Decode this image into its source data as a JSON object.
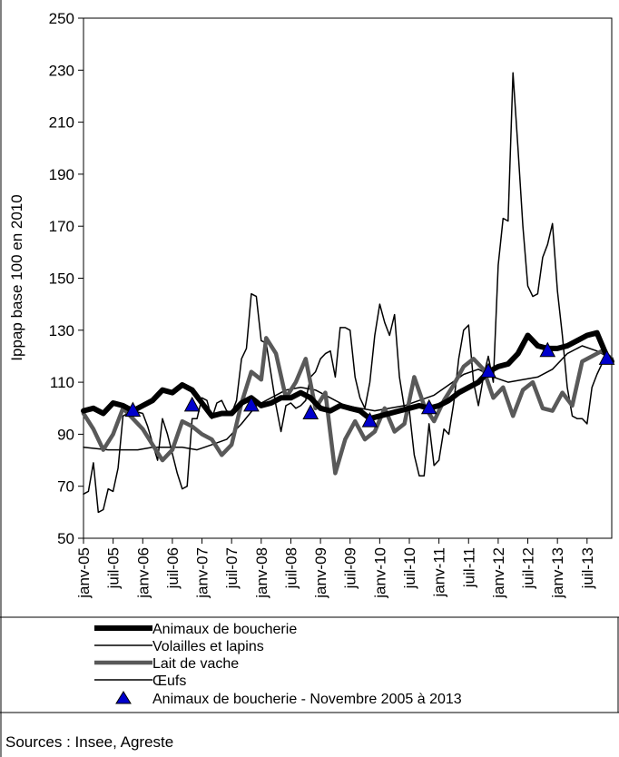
{
  "source_note": "Sources : Insee, Agreste",
  "legend": {
    "items": [
      {
        "label": "Animaux de boucherie",
        "style": "thick"
      },
      {
        "label": "Volailles et lapins",
        "style": "thin"
      },
      {
        "label": "Lait de vache",
        "style": "gray"
      },
      {
        "label": "Œufs",
        "style": "thin"
      },
      {
        "label": "Animaux de boucherie - Novembre 2005 à 2013",
        "style": "marker"
      }
    ]
  },
  "colors": {
    "animaux": "#000000",
    "volailles": "#000000",
    "lait": "#595959",
    "oeufs": "#000000",
    "marker": "#0000cc"
  },
  "chart_data": {
    "type": "line",
    "ylabel": "Ippap base 100 en 2010",
    "xlabel": "",
    "ylim": [
      50,
      250
    ],
    "yticks": [
      50,
      70,
      90,
      110,
      130,
      150,
      170,
      190,
      210,
      230,
      250
    ],
    "xlim": [
      "2005-01",
      "2013-12"
    ],
    "xtick_labels": [
      "janv-05",
      "juil-05",
      "janv-06",
      "juil-06",
      "janv-07",
      "juil-07",
      "janv-08",
      "juil-08",
      "janv-09",
      "juil-09",
      "janv-10",
      "juil-10",
      "janv-11",
      "juil-11",
      "janv-12",
      "juil-12",
      "janv-13",
      "juil-13"
    ],
    "xtick_dates": [
      "2005-01",
      "2005-07",
      "2006-01",
      "2006-07",
      "2007-01",
      "2007-07",
      "2008-01",
      "2008-07",
      "2009-01",
      "2009-07",
      "2010-01",
      "2010-07",
      "2011-01",
      "2011-07",
      "2012-01",
      "2012-07",
      "2013-01",
      "2013-07"
    ],
    "series": [
      {
        "name": "Animaux de boucherie",
        "key": "animaux",
        "points": [
          [
            "2005-01",
            99
          ],
          [
            "2005-03",
            100
          ],
          [
            "2005-05",
            98
          ],
          [
            "2005-07",
            102
          ],
          [
            "2005-09",
            101
          ],
          [
            "2005-11",
            99
          ],
          [
            "2006-01",
            101
          ],
          [
            "2006-03",
            103
          ],
          [
            "2006-05",
            107
          ],
          [
            "2006-07",
            106
          ],
          [
            "2006-09",
            109
          ],
          [
            "2006-11",
            107
          ],
          [
            "2007-01",
            102
          ],
          [
            "2007-03",
            97
          ],
          [
            "2007-05",
            98
          ],
          [
            "2007-07",
            98
          ],
          [
            "2007-09",
            102
          ],
          [
            "2007-11",
            104
          ],
          [
            "2008-01",
            101
          ],
          [
            "2008-03",
            102
          ],
          [
            "2008-05",
            104
          ],
          [
            "2008-07",
            104
          ],
          [
            "2008-09",
            106
          ],
          [
            "2008-11",
            104
          ],
          [
            "2009-01",
            100
          ],
          [
            "2009-03",
            99
          ],
          [
            "2009-05",
            101
          ],
          [
            "2009-07",
            100
          ],
          [
            "2009-09",
            99
          ],
          [
            "2009-11",
            96
          ],
          [
            "2010-01",
            97
          ],
          [
            "2010-03",
            98
          ],
          [
            "2010-05",
            99
          ],
          [
            "2010-07",
            100
          ],
          [
            "2010-09",
            101
          ],
          [
            "2010-11",
            100
          ],
          [
            "2011-01",
            101
          ],
          [
            "2011-03",
            103
          ],
          [
            "2011-05",
            106
          ],
          [
            "2011-07",
            108
          ],
          [
            "2011-09",
            110
          ],
          [
            "2011-11",
            114
          ],
          [
            "2012-01",
            116
          ],
          [
            "2012-03",
            117
          ],
          [
            "2012-05",
            121
          ],
          [
            "2012-07",
            128
          ],
          [
            "2012-09",
            124
          ],
          [
            "2012-11",
            123
          ],
          [
            "2013-01",
            123
          ],
          [
            "2013-03",
            124
          ],
          [
            "2013-05",
            126
          ],
          [
            "2013-07",
            128
          ],
          [
            "2013-09",
            129
          ],
          [
            "2013-11",
            120
          ],
          [
            "2013-12",
            118
          ]
        ]
      },
      {
        "name": "Volailles et lapins",
        "key": "volailles",
        "points": [
          [
            "2005-01",
            85
          ],
          [
            "2005-06",
            84
          ],
          [
            "2005-12",
            84
          ],
          [
            "2006-03",
            85
          ],
          [
            "2006-06",
            85
          ],
          [
            "2006-09",
            85
          ],
          [
            "2006-12",
            84
          ],
          [
            "2007-03",
            86
          ],
          [
            "2007-06",
            88
          ],
          [
            "2007-09",
            94
          ],
          [
            "2007-12",
            101
          ],
          [
            "2008-03",
            104
          ],
          [
            "2008-06",
            107
          ],
          [
            "2008-09",
            108
          ],
          [
            "2008-12",
            107
          ],
          [
            "2009-03",
            104
          ],
          [
            "2009-06",
            101
          ],
          [
            "2009-09",
            100
          ],
          [
            "2009-12",
            99
          ],
          [
            "2010-03",
            100
          ],
          [
            "2010-06",
            101
          ],
          [
            "2010-09",
            103
          ],
          [
            "2010-12",
            105
          ],
          [
            "2011-03",
            109
          ],
          [
            "2011-06",
            113
          ],
          [
            "2011-09",
            115
          ],
          [
            "2011-12",
            112
          ],
          [
            "2012-03",
            110
          ],
          [
            "2012-06",
            111
          ],
          [
            "2012-09",
            112
          ],
          [
            "2012-12",
            115
          ],
          [
            "2013-03",
            121
          ],
          [
            "2013-06",
            124
          ],
          [
            "2013-09",
            122
          ],
          [
            "2013-12",
            119
          ]
        ]
      },
      {
        "name": "Lait de vache",
        "key": "lait",
        "points": [
          [
            "2005-01",
            98
          ],
          [
            "2005-03",
            92
          ],
          [
            "2005-05",
            84
          ],
          [
            "2005-07",
            90
          ],
          [
            "2005-09",
            100
          ],
          [
            "2005-11",
            96
          ],
          [
            "2006-01",
            92
          ],
          [
            "2006-03",
            86
          ],
          [
            "2006-05",
            80
          ],
          [
            "2006-07",
            84
          ],
          [
            "2006-09",
            95
          ],
          [
            "2006-11",
            93
          ],
          [
            "2007-01",
            90
          ],
          [
            "2007-03",
            88
          ],
          [
            "2007-05",
            82
          ],
          [
            "2007-07",
            86
          ],
          [
            "2007-09",
            102
          ],
          [
            "2007-11",
            114
          ],
          [
            "2008-01",
            111
          ],
          [
            "2008-02",
            127
          ],
          [
            "2008-04",
            121
          ],
          [
            "2008-06",
            104
          ],
          [
            "2008-08",
            110
          ],
          [
            "2008-10",
            119
          ],
          [
            "2008-12",
            100
          ],
          [
            "2009-02",
            106
          ],
          [
            "2009-04",
            75
          ],
          [
            "2009-06",
            88
          ],
          [
            "2009-08",
            95
          ],
          [
            "2009-10",
            88
          ],
          [
            "2009-12",
            91
          ],
          [
            "2010-02",
            100
          ],
          [
            "2010-04",
            91
          ],
          [
            "2010-06",
            94
          ],
          [
            "2010-08",
            112
          ],
          [
            "2010-10",
            101
          ],
          [
            "2010-12",
            95
          ],
          [
            "2011-02",
            103
          ],
          [
            "2011-04",
            109
          ],
          [
            "2011-06",
            116
          ],
          [
            "2011-08",
            119
          ],
          [
            "2011-10",
            115
          ],
          [
            "2011-12",
            104
          ],
          [
            "2012-02",
            108
          ],
          [
            "2012-04",
            97
          ],
          [
            "2012-06",
            107
          ],
          [
            "2012-08",
            110
          ],
          [
            "2012-10",
            100
          ],
          [
            "2012-12",
            99
          ],
          [
            "2013-02",
            106
          ],
          [
            "2013-04",
            101
          ],
          [
            "2013-06",
            118
          ],
          [
            "2013-08",
            120
          ],
          [
            "2013-10",
            122
          ],
          [
            "2013-12",
            119
          ]
        ]
      },
      {
        "name": "Œufs",
        "key": "oeufs",
        "points": [
          [
            "2005-01",
            67
          ],
          [
            "2005-02",
            68
          ],
          [
            "2005-03",
            79
          ],
          [
            "2005-04",
            60
          ],
          [
            "2005-05",
            61
          ],
          [
            "2005-06",
            69
          ],
          [
            "2005-07",
            68
          ],
          [
            "2005-08",
            77
          ],
          [
            "2005-09",
            97
          ],
          [
            "2005-11",
            99
          ],
          [
            "2006-01",
            98
          ],
          [
            "2006-02",
            93
          ],
          [
            "2006-04",
            80
          ],
          [
            "2006-05",
            96
          ],
          [
            "2006-06",
            90
          ],
          [
            "2006-08",
            75
          ],
          [
            "2006-09",
            69
          ],
          [
            "2006-10",
            70
          ],
          [
            "2006-11",
            96
          ],
          [
            "2006-12",
            96
          ],
          [
            "2007-01",
            104
          ],
          [
            "2007-02",
            103
          ],
          [
            "2007-03",
            96
          ],
          [
            "2007-04",
            102
          ],
          [
            "2007-05",
            103
          ],
          [
            "2007-06",
            99
          ],
          [
            "2007-07",
            98
          ],
          [
            "2007-08",
            103
          ],
          [
            "2007-09",
            119
          ],
          [
            "2007-10",
            123
          ],
          [
            "2007-11",
            144
          ],
          [
            "2007-12",
            143
          ],
          [
            "2008-01",
            126
          ],
          [
            "2008-02",
            125
          ],
          [
            "2008-03",
            113
          ],
          [
            "2008-04",
            101
          ],
          [
            "2008-05",
            91
          ],
          [
            "2008-06",
            101
          ],
          [
            "2008-07",
            102
          ],
          [
            "2008-08",
            100
          ],
          [
            "2008-09",
            101
          ],
          [
            "2008-10",
            103
          ],
          [
            "2008-11",
            112
          ],
          [
            "2008-12",
            114
          ],
          [
            "2009-01",
            119
          ],
          [
            "2009-02",
            121
          ],
          [
            "2009-03",
            122
          ],
          [
            "2009-04",
            112
          ],
          [
            "2009-05",
            131
          ],
          [
            "2009-06",
            131
          ],
          [
            "2009-07",
            130
          ],
          [
            "2009-08",
            112
          ],
          [
            "2009-09",
            104
          ],
          [
            "2009-10",
            100
          ],
          [
            "2009-11",
            110
          ],
          [
            "2009-12",
            128
          ],
          [
            "2010-01",
            140
          ],
          [
            "2010-02",
            133
          ],
          [
            "2010-03",
            128
          ],
          [
            "2010-04",
            136
          ],
          [
            "2010-05",
            112
          ],
          [
            "2010-06",
            100
          ],
          [
            "2010-07",
            99
          ],
          [
            "2010-08",
            82
          ],
          [
            "2010-09",
            74
          ],
          [
            "2010-10",
            74
          ],
          [
            "2010-11",
            94
          ],
          [
            "2010-12",
            78
          ],
          [
            "2011-01",
            80
          ],
          [
            "2011-02",
            92
          ],
          [
            "2011-03",
            90
          ],
          [
            "2011-04",
            102
          ],
          [
            "2011-05",
            119
          ],
          [
            "2011-06",
            130
          ],
          [
            "2011-07",
            132
          ],
          [
            "2011-08",
            110
          ],
          [
            "2011-09",
            101
          ],
          [
            "2011-10",
            112
          ],
          [
            "2011-11",
            120
          ],
          [
            "2011-12",
            110
          ],
          [
            "2012-01",
            155
          ],
          [
            "2012-02",
            173
          ],
          [
            "2012-03",
            172
          ],
          [
            "2012-04",
            229
          ],
          [
            "2012-05",
            200
          ],
          [
            "2012-06",
            170
          ],
          [
            "2012-07",
            147
          ],
          [
            "2012-08",
            143
          ],
          [
            "2012-09",
            144
          ],
          [
            "2012-10",
            158
          ],
          [
            "2012-11",
            163
          ],
          [
            "2012-12",
            171
          ],
          [
            "2013-01",
            145
          ],
          [
            "2013-02",
            128
          ],
          [
            "2013-03",
            108
          ],
          [
            "2013-04",
            97
          ],
          [
            "2013-05",
            96
          ],
          [
            "2013-06",
            96
          ],
          [
            "2013-07",
            94
          ],
          [
            "2013-08",
            108
          ],
          [
            "2013-09",
            113
          ],
          [
            "2013-10",
            117
          ],
          [
            "2013-11",
            118
          ],
          [
            "2013-12",
            119
          ]
        ]
      },
      {
        "name": "Animaux de boucherie - Novembre 2005 à 2013",
        "key": "marker",
        "points": [
          [
            "2005-11",
            99
          ],
          [
            "2006-11",
            101
          ],
          [
            "2007-11",
            101
          ],
          [
            "2008-11",
            98
          ],
          [
            "2009-11",
            95
          ],
          [
            "2010-11",
            100
          ],
          [
            "2011-11",
            114
          ],
          [
            "2012-11",
            122
          ],
          [
            "2013-11",
            119
          ]
        ]
      }
    ]
  }
}
